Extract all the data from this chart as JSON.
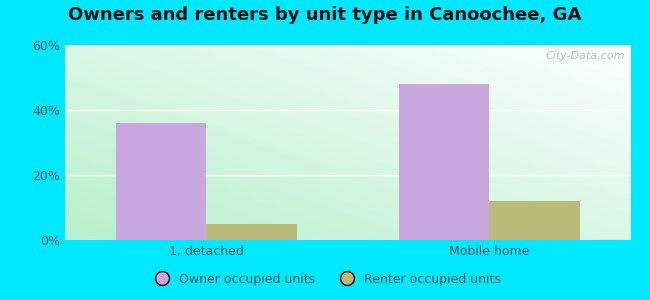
{
  "title": "Owners and renters by unit type in Canoochee, GA",
  "categories": [
    "1, detached",
    "Mobile home"
  ],
  "owner_values": [
    36,
    48
  ],
  "renter_values": [
    5,
    12
  ],
  "owner_color": "#c9a8e0",
  "renter_color": "#b8bc78",
  "owner_label": "Owner occupied units",
  "renter_label": "Renter occupied units",
  "ylim": [
    0,
    60
  ],
  "yticks": [
    0,
    20,
    40,
    60
  ],
  "ytick_labels": [
    "0%",
    "20%",
    "40%",
    "60%"
  ],
  "bg_color_bottom_left": "#b8f0cc",
  "bg_color_top_right": "#eeffee",
  "outer_background": "#00e8ff",
  "bar_width": 0.32,
  "title_fontsize": 13,
  "watermark": "City-Data.com"
}
